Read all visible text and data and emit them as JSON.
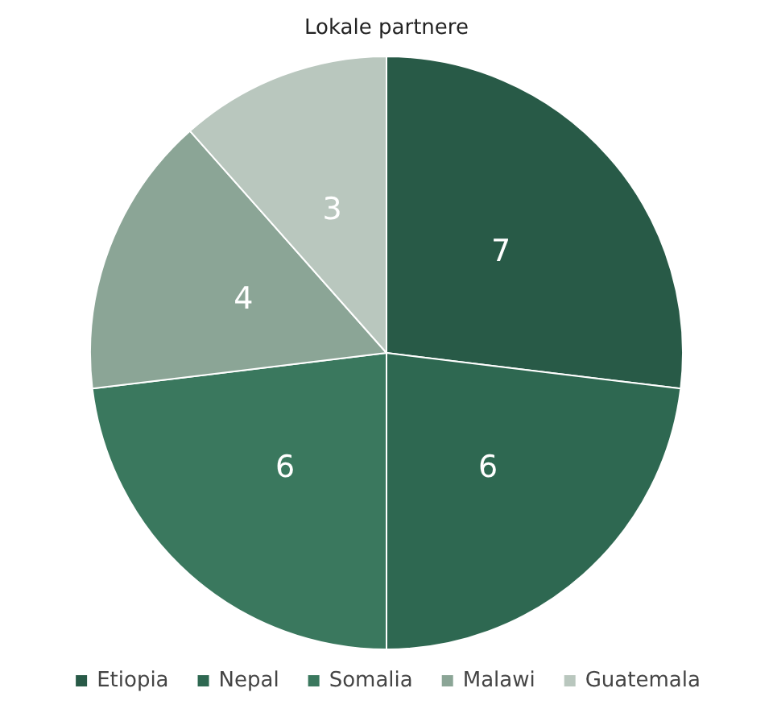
{
  "chart_data": {
    "type": "pie",
    "title": "Lokale partnere",
    "categories": [
      "Etiopia",
      "Nepal",
      "Somalia",
      "Malawi",
      "Guatemala"
    ],
    "values": [
      7,
      6,
      6,
      4,
      3
    ],
    "colors": [
      "#285a47",
      "#2e6851",
      "#3a785e",
      "#8ba596",
      "#b9c7be"
    ],
    "data_labels": true,
    "legend": "bottom"
  }
}
